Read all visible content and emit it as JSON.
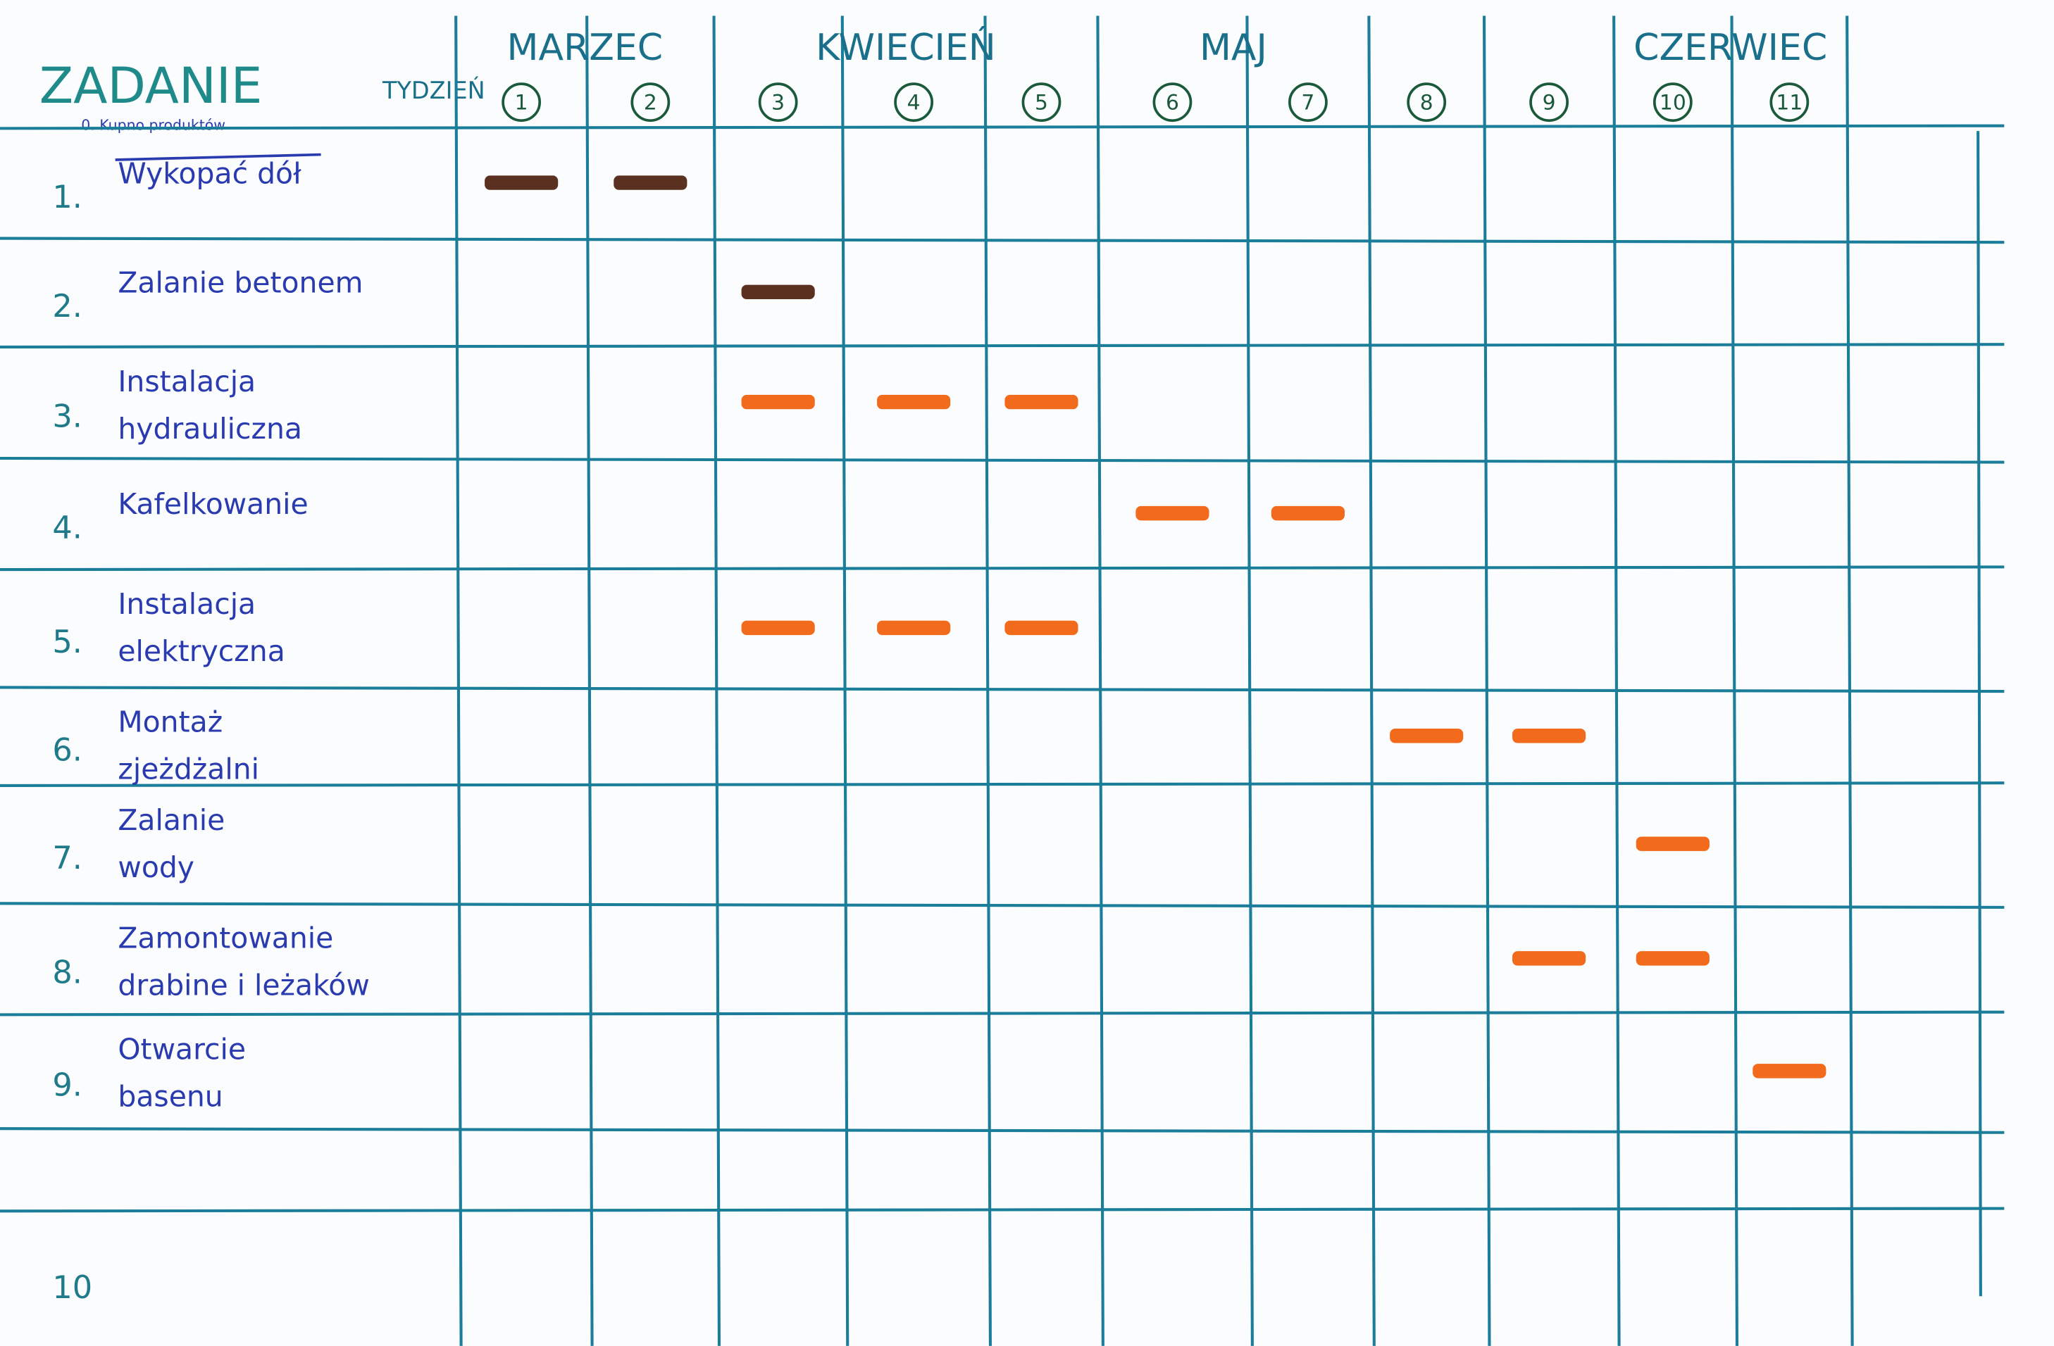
{
  "header": {
    "task_title": "ZADANIE",
    "task_zero": "0. Kupno produktów",
    "week_title": "TYDZIEŃ"
  },
  "months": [
    {
      "name": "MARZEC",
      "weeks": [
        "1",
        "2"
      ]
    },
    {
      "name": "KWIECIEŃ",
      "weeks": [
        "3",
        "4",
        "5"
      ]
    },
    {
      "name": "MAJ",
      "weeks": [
        "6",
        "7"
      ]
    },
    {
      "name": "CZERWIEC",
      "weeks": [
        "10",
        "11"
      ]
    }
  ],
  "weeks": [
    "1",
    "2",
    "3",
    "4",
    "5",
    "6",
    "7",
    "8",
    "9",
    "10",
    "11"
  ],
  "tasks": [
    {
      "number": "1.",
      "lines": [
        "Wykopać dół"
      ],
      "weeks": [
        "1",
        "2"
      ]
    },
    {
      "number": "2.",
      "lines": [
        "Zalanie betonem"
      ],
      "weeks": [
        "3"
      ]
    },
    {
      "number": "3.",
      "lines": [
        "Instalacja",
        "hydrauliczna"
      ],
      "weeks": [
        "3",
        "4",
        "5"
      ]
    },
    {
      "number": "4.",
      "lines": [
        "Kafelkowanie"
      ],
      "weeks": [
        "6",
        "7"
      ]
    },
    {
      "number": "5.",
      "lines": [
        "Instalacja",
        "elektryczna"
      ],
      "weeks": [
        "3",
        "4",
        "5"
      ]
    },
    {
      "number": "6.",
      "lines": [
        "Montaż",
        "zjeżdżalni"
      ],
      "weeks": [
        "8",
        "9"
      ]
    },
    {
      "number": "7.",
      "lines": [
        "Zalanie",
        "wody"
      ],
      "weeks": [
        "10"
      ]
    },
    {
      "number": "8.",
      "lines": [
        "Zamontowanie",
        "drabine i leżaków"
      ],
      "weeks": [
        "9",
        "10"
      ]
    },
    {
      "number": "9.",
      "lines": [
        "Otwarcie",
        "basenu"
      ],
      "weeks": [
        "11"
      ]
    },
    {
      "number": "10",
      "lines": [],
      "weeks": []
    }
  ]
}
